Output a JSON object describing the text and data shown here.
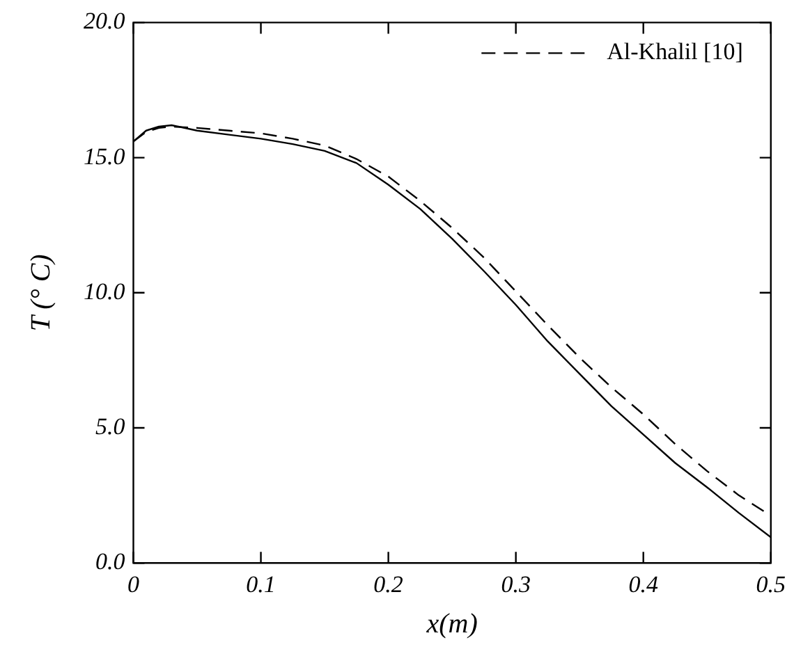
{
  "chart_data": {
    "type": "line",
    "xlabel": "x(m)",
    "ylabel": "T (° C)",
    "xlim": [
      0,
      0.5
    ],
    "xticks": [
      {
        "value": 0,
        "label": "0"
      },
      0.1,
      0.2,
      0.3,
      0.4,
      0.5
    ],
    "ylim": [
      0,
      20
    ],
    "yticks": [
      {
        "value": 0,
        "label": "0.0"
      },
      {
        "value": 5,
        "label": "5.0"
      },
      {
        "value": 10,
        "label": "10.0"
      },
      {
        "value": 15,
        "label": "15.0"
      },
      {
        "value": 20,
        "label": "20.0"
      }
    ],
    "grid": false,
    "legend": "top right",
    "marker": "none",
    "series": [
      {
        "color": "#000000",
        "line_style": "solid",
        "x": [
          0,
          0.01,
          0.02,
          0.03,
          0.05,
          0.075,
          0.1,
          0.125,
          0.15,
          0.175,
          0.2,
          0.225,
          0.25,
          0.275,
          0.3,
          0.325,
          0.35,
          0.375,
          0.4,
          0.425,
          0.45,
          0.475,
          0.5
        ],
        "values": [
          15.6,
          16.0,
          16.15,
          16.2,
          16.0,
          15.85,
          15.7,
          15.5,
          15.25,
          14.8,
          14.0,
          13.1,
          12.0,
          10.8,
          9.55,
          8.2,
          7.0,
          5.8,
          4.75,
          3.7,
          2.8,
          1.85,
          0.95
        ]
      },
      {
        "name": "Al-Khalil [10]",
        "color": "#000000",
        "line_style": "dashed",
        "x": [
          0,
          0.01,
          0.02,
          0.03,
          0.05,
          0.075,
          0.1,
          0.125,
          0.15,
          0.175,
          0.2,
          0.225,
          0.25,
          0.275,
          0.3,
          0.325,
          0.35,
          0.375,
          0.4,
          0.425,
          0.45,
          0.475,
          0.5
        ],
        "values": [
          15.6,
          15.95,
          16.1,
          16.15,
          16.1,
          16.0,
          15.9,
          15.7,
          15.45,
          14.95,
          14.3,
          13.4,
          12.4,
          11.3,
          10.05,
          8.8,
          7.6,
          6.5,
          5.5,
          4.4,
          3.4,
          2.5,
          1.75
        ]
      }
    ]
  }
}
